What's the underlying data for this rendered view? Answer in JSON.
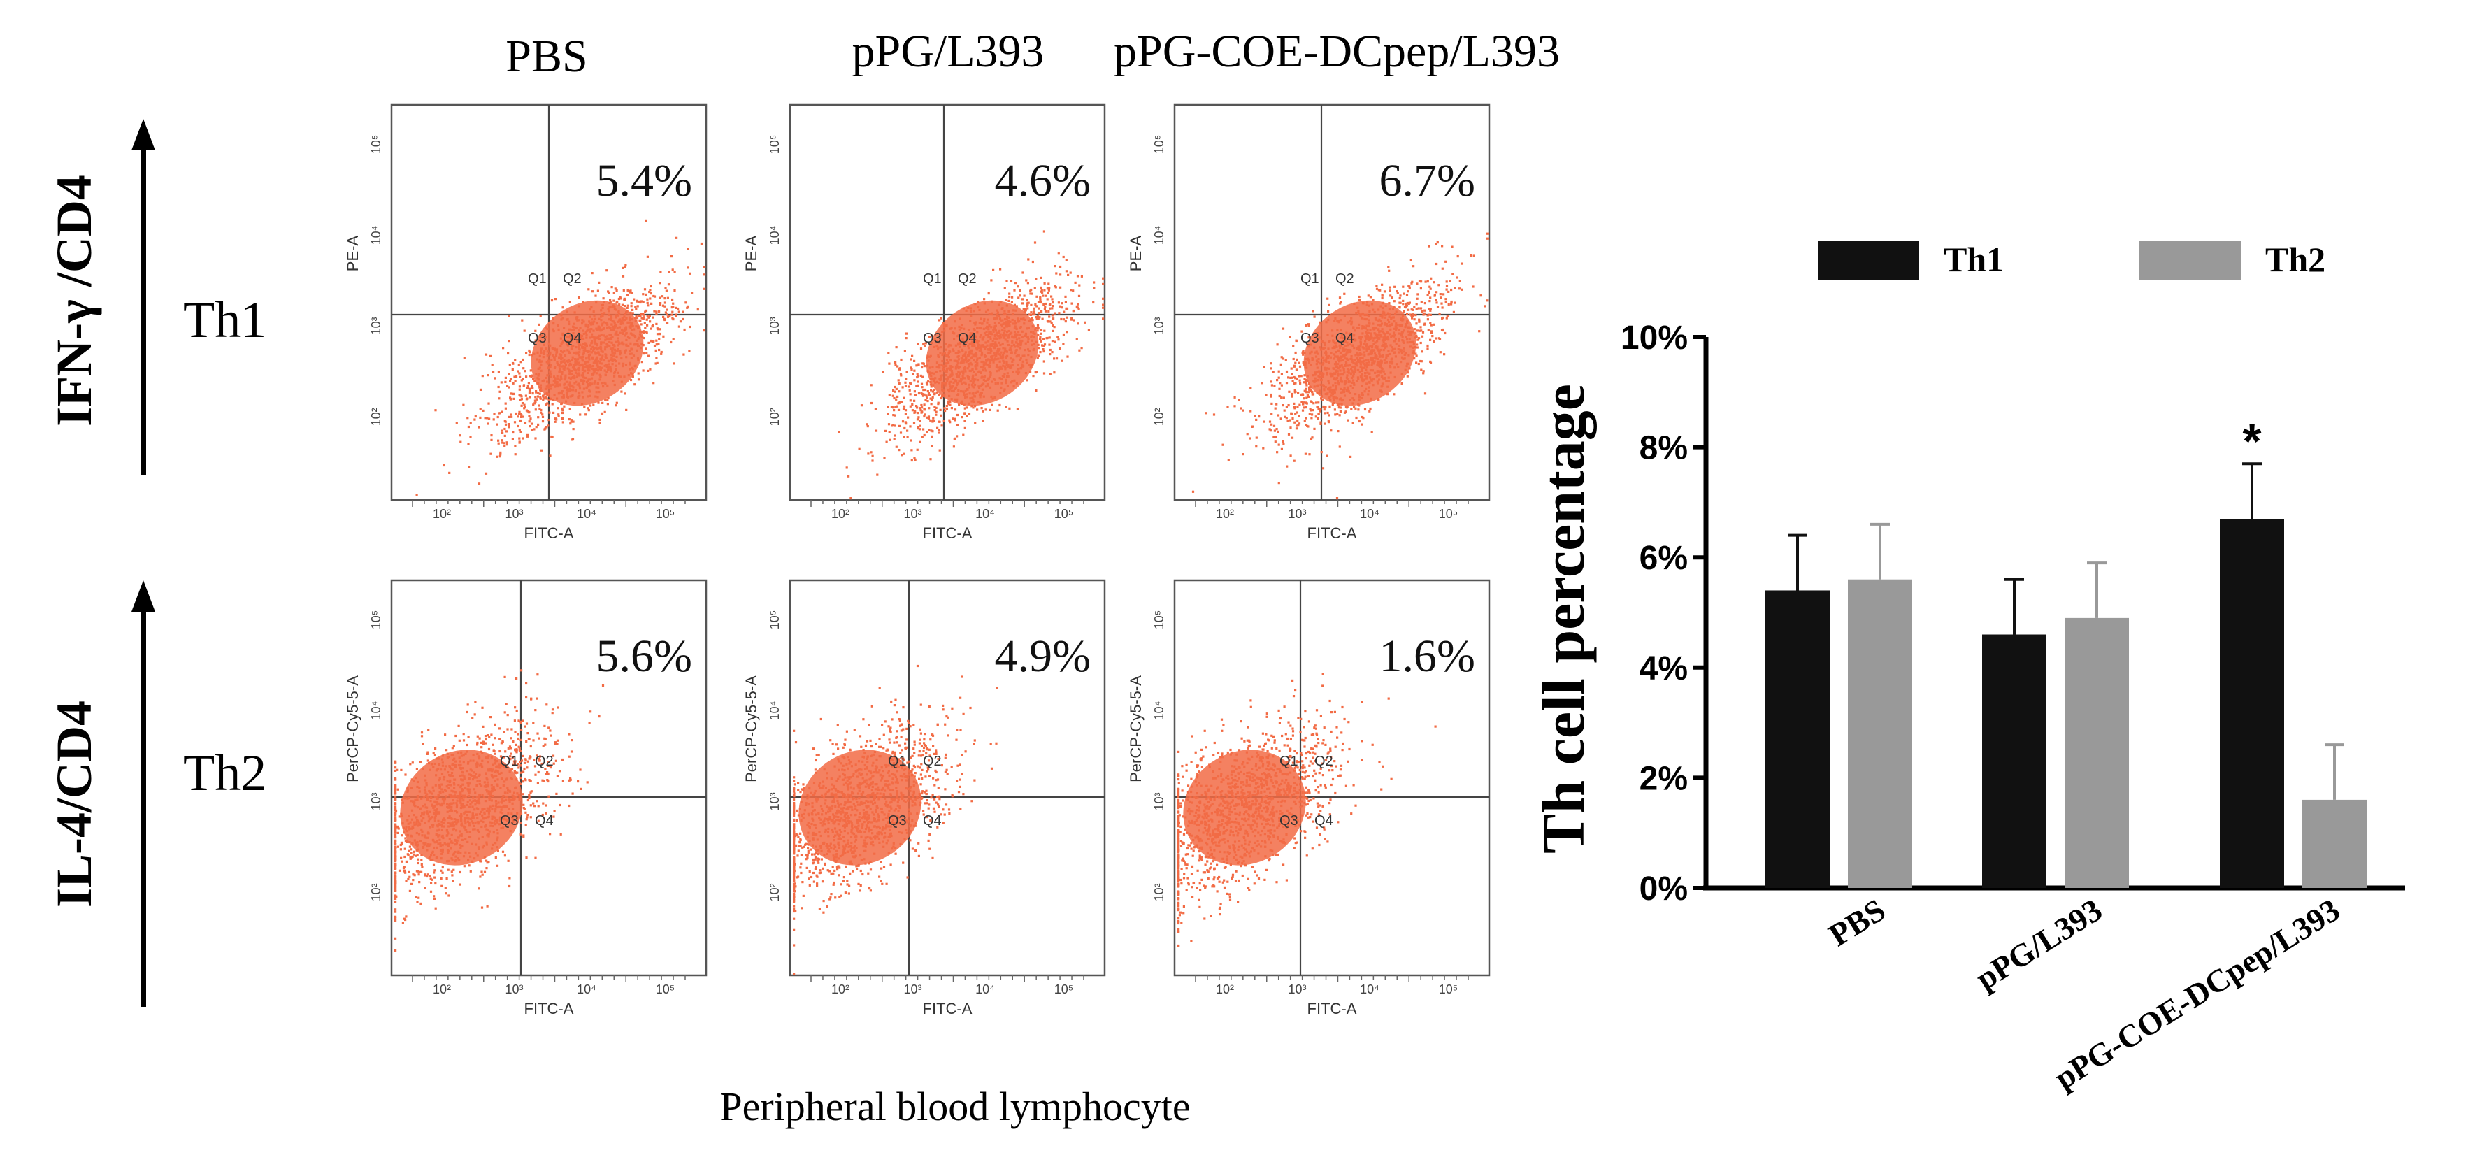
{
  "flow_panel": {
    "columns": [
      "PBS",
      "pPG/L393",
      "pPG-COE-DCpep/L393"
    ],
    "rows": [
      {
        "axis_label": "IFN-γ  /CD4",
        "row_label": "Th1",
        "y_axis_label": "PE-A",
        "x_axis_label": "FITC-A",
        "quadrants": [
          "Q1",
          "Q2",
          "Q3",
          "Q4"
        ],
        "percentages": [
          "5.4%",
          "4.6%",
          "6.7%"
        ],
        "y_ticks": [
          "10⁵",
          "10⁴",
          "10³",
          "10²"
        ],
        "x_ticks": [
          "10²",
          "10³",
          "10⁴",
          "10⁵"
        ]
      },
      {
        "axis_label": "IL-4/CD4",
        "row_label": "Th2",
        "y_axis_label": "PerCP-Cy5-5-A",
        "x_axis_label": "FITC-A",
        "quadrants": [
          "Q1",
          "Q2",
          "Q3",
          "Q4"
        ],
        "percentages": [
          "5.6%",
          "4.9%",
          "1.6%"
        ],
        "y_ticks": [
          "10⁵",
          "10⁴",
          "10³",
          "10²"
        ],
        "x_ticks": [
          "10²",
          "10³",
          "10⁴",
          "10⁵"
        ]
      }
    ],
    "bottom_caption": "Peripheral blood lymphocyte",
    "dot_color": "#f26b45"
  },
  "chart_data": {
    "type": "bar",
    "title": "",
    "xlabel": "",
    "ylabel": "Th cell percentage",
    "categories": [
      "PBS",
      "pPG/L393",
      "pPG-COE-DCpep/L393"
    ],
    "series": [
      {
        "name": "Th1",
        "color": "#111111",
        "values": [
          5.4,
          4.6,
          6.7
        ],
        "errors": [
          1.0,
          1.0,
          1.0
        ]
      },
      {
        "name": "Th2",
        "color": "#999999",
        "values": [
          5.6,
          4.9,
          1.6
        ],
        "errors": [
          1.0,
          1.0,
          1.0
        ]
      }
    ],
    "ylim": [
      0,
      10
    ],
    "yticks": [
      "0%",
      "2%",
      "4%",
      "6%",
      "8%",
      "10%"
    ],
    "annotations": [
      {
        "category": "pPG-COE-DCpep/L393",
        "series": "Th1",
        "text": "*"
      }
    ],
    "legend": "top",
    "grid": false
  }
}
